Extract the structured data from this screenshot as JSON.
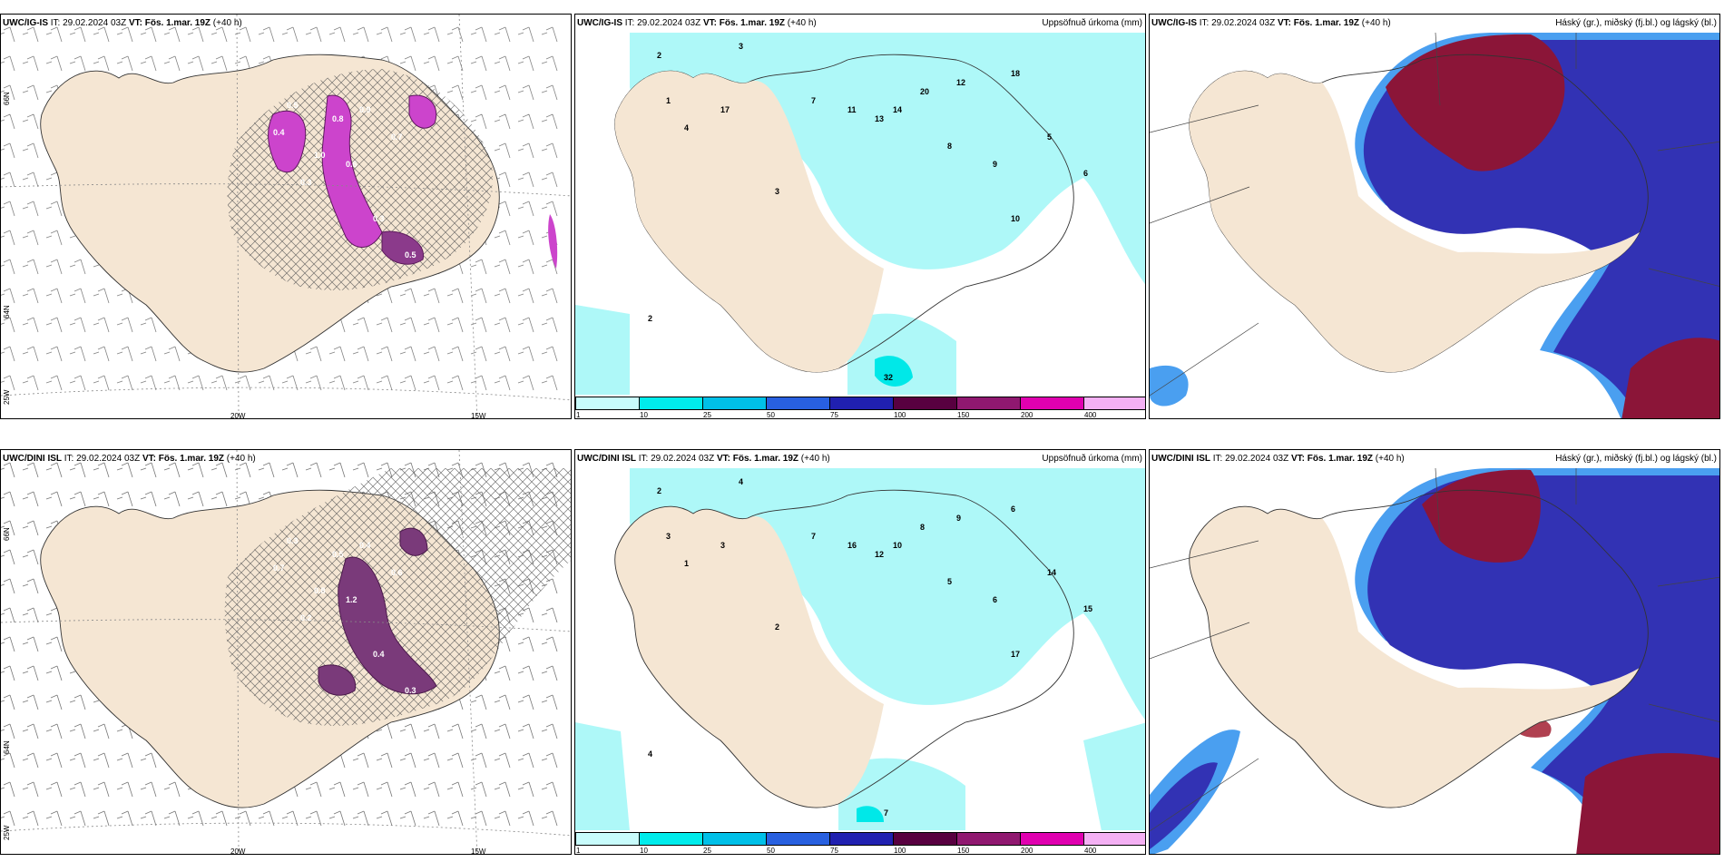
{
  "panels": [
    {
      "id": "p1",
      "model": "UWC/IG-IS",
      "it": "IT: 29.02.2024 03Z",
      "vt_label": "VT:",
      "vt": "Fös. 1.mar. 19Z",
      "lead": "(+40 h)",
      "right": "",
      "lat_labels": [
        "66N",
        "64N",
        "25W"
      ],
      "lon_labels": [
        "20W",
        "15W"
      ],
      "values": [
        "0.5",
        "0.8",
        "0.9",
        "0.7",
        "0.6",
        "0.3",
        "0.4",
        "1.0",
        "0.3",
        "0.5"
      ]
    },
    {
      "id": "p2",
      "model": "UWC/IG-IS",
      "it": "IT: 29.02.2024 03Z",
      "vt_label": "VT:",
      "vt": "Fös. 1.mar. 19Z",
      "lead": "(+40 h)",
      "right": "Uppsöfnuð úrkoma (mm)",
      "values": [
        "2",
        "3",
        "1",
        "4",
        "7",
        "11",
        "13",
        "14",
        "20",
        "12",
        "8",
        "9",
        "5",
        "6",
        "10",
        "17",
        "32",
        "18",
        "3",
        "2"
      ]
    },
    {
      "id": "p3",
      "model": "UWC/IG-IS",
      "it": "IT: 29.02.2024 03Z",
      "vt_label": "VT:",
      "vt": "Fös. 1.mar. 19Z",
      "lead": "(+40 h)",
      "right": "Háský (gr.), miðský (fj.bl.) og lágský (bl.)"
    },
    {
      "id": "p4",
      "model": "UWC/DINI ISL",
      "it": "IT: 29.02.2024 03Z",
      "vt_label": "VT:",
      "vt": "Fös. 1.mar. 19Z",
      "lead": "(+40 h)",
      "right": "",
      "lat_labels": [
        "66N",
        "64N",
        "25W"
      ],
      "lon_labels": [
        "20W",
        "15W"
      ],
      "values": [
        "0.3",
        "0.5",
        "0.4",
        "0.6",
        "1.2",
        "0.2",
        "0.7",
        "0.8",
        "0.4",
        "0.3"
      ]
    },
    {
      "id": "p5",
      "model": "UWC/DINI ISL",
      "it": "IT: 29.02.2024 03Z",
      "vt_label": "VT:",
      "vt": "Fös. 1.mar. 19Z",
      "lead": "(+40 h)",
      "right": "Uppsöfnuð úrkoma (mm)",
      "values": [
        "2",
        "4",
        "3",
        "1",
        "7",
        "16",
        "12",
        "10",
        "8",
        "9",
        "5",
        "6",
        "14",
        "15",
        "17",
        "3",
        "7",
        "6",
        "2",
        "4"
      ]
    },
    {
      "id": "p6",
      "model": "UWC/DINI ISL",
      "it": "IT: 29.02.2024 03Z",
      "vt_label": "VT:",
      "vt": "Fös. 1.mar. 19Z",
      "lead": "(+40 h)",
      "right": "Háský (gr.), miðský (fj.bl.) og lágský (bl.)"
    }
  ],
  "colorbar": {
    "ticks": [
      "1",
      "10",
      "25",
      "50",
      "75",
      "100",
      "150",
      "200",
      "400"
    ],
    "colors": [
      "#c8fcfc",
      "#00ecec",
      "#00c0e8",
      "#2860e0",
      "#2020b0",
      "#580040",
      "#901870",
      "#e000b0",
      "#f4b0f4"
    ]
  },
  "colors": {
    "land": "#f5e6d3",
    "precip_light": "#aef8f8",
    "cloud_high": "#8b1538",
    "cloud_mid": "#3232b4",
    "cloud_low": "#4a9ff0",
    "magenta": "#cc44cc"
  }
}
